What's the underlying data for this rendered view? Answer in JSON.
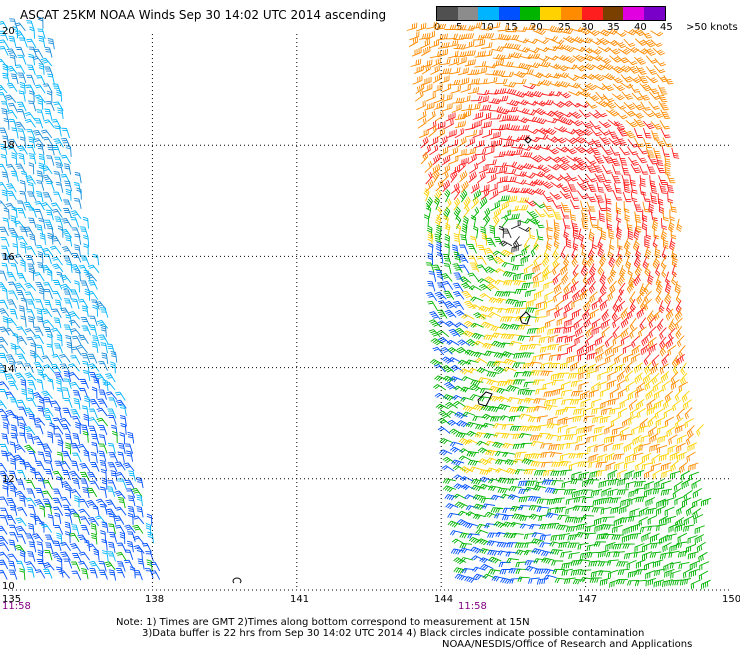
{
  "title": "ASCAT 25KM NOAA Winds Sep 30 14:02 UTC 2014 ascending",
  "legend": {
    "labels": [
      "0",
      "5",
      "10",
      "15",
      "20",
      "25",
      "30",
      "35",
      "40",
      "45",
      ">50 knots"
    ],
    "colors": [
      "#505050",
      "#8c8c8c",
      "#00b4ff",
      "#0050ff",
      "#00b400",
      "#ffd200",
      "#ff8c00",
      "#ff1e1e",
      "#7a4000",
      "#e000e0",
      "#7800c8"
    ]
  },
  "axes": {
    "lat_labels": [
      "20",
      "18",
      "16",
      "14",
      "12",
      "10"
    ],
    "lon_labels": [
      "135",
      "138",
      "141",
      "144",
      "147",
      "150"
    ]
  },
  "pass_times": [
    "11:58",
    "11:58"
  ],
  "notes": {
    "line1": "Note: 1) Times are GMT 2)Times along bottom correspond to measurement at 15N",
    "line2": "3)Data buffer is 22 hrs from Sep 30 14:02 UTC 2014 4) Black circles indicate possible contamination",
    "credit": "NOAA/NESDIS/Office of Research and Applications"
  },
  "colors": {
    "grid": "#000000",
    "calm": "#505050",
    "light": "#8c8c8c",
    "cyan": "#00b4ff",
    "blue": "#0050ff",
    "green": "#00b400",
    "yellow": "#ffd200",
    "orange": "#ff8c00",
    "red": "#ff1e1e",
    "brown": "#7a4000"
  }
}
